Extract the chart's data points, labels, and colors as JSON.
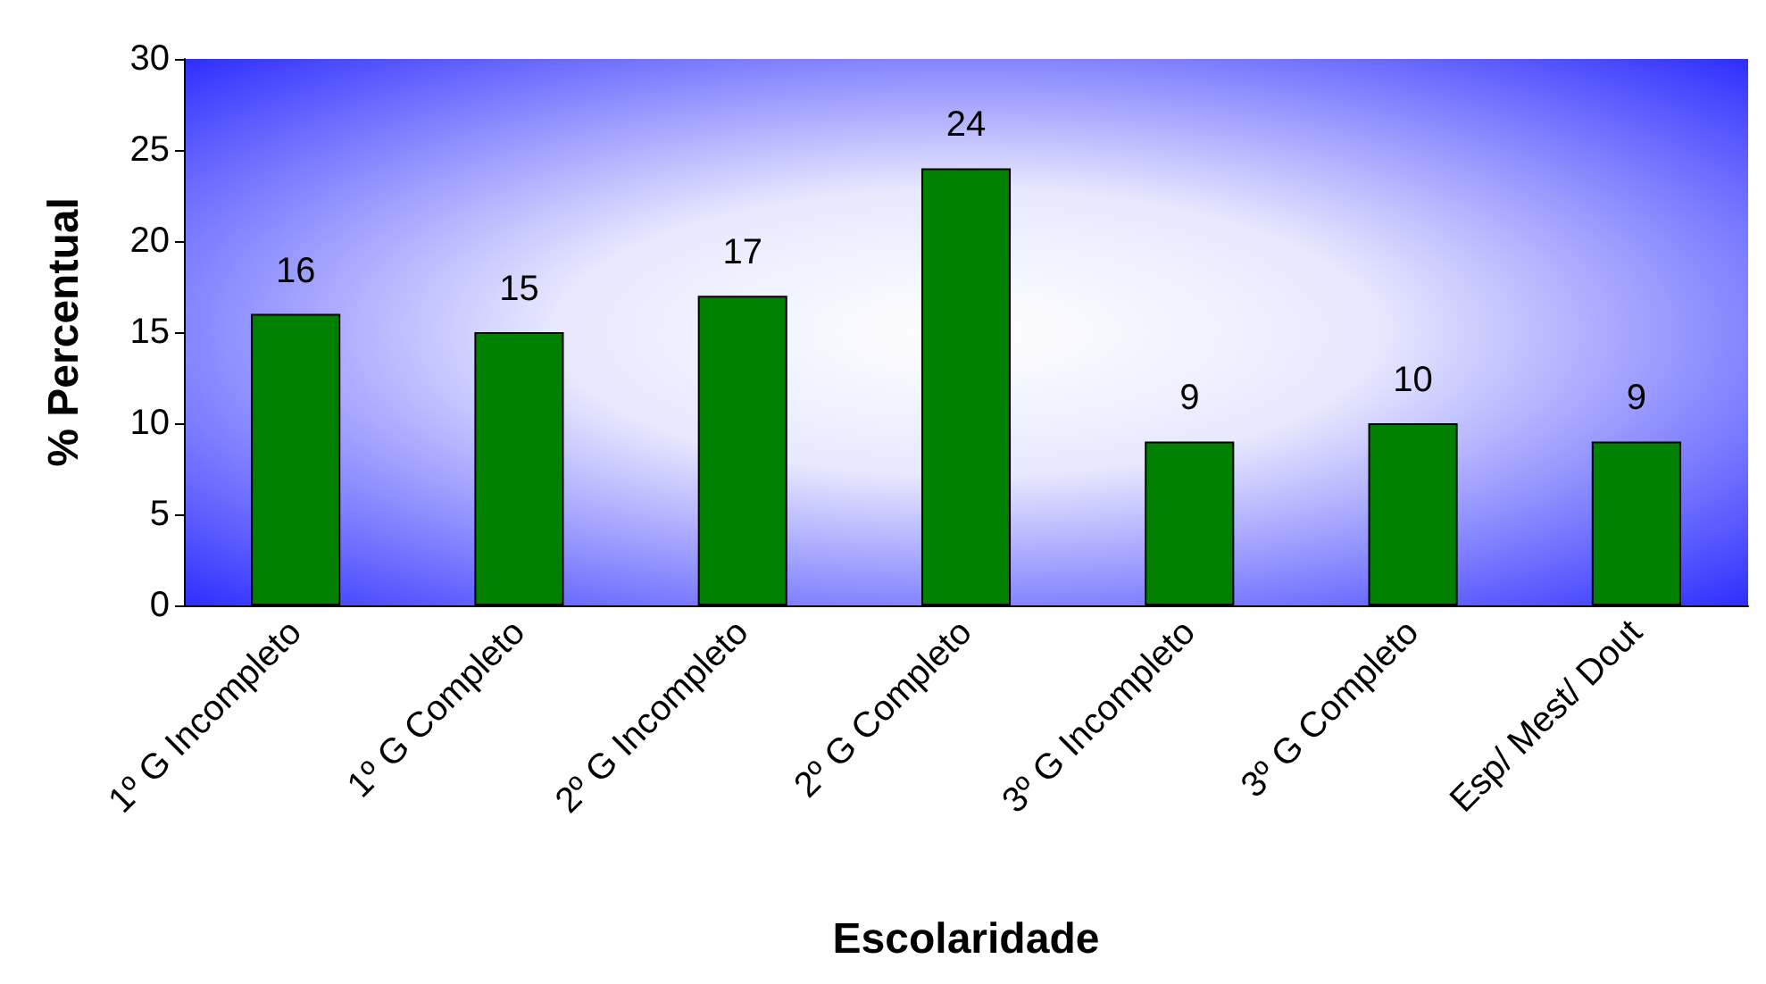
{
  "chart_data": {
    "type": "bar",
    "xlabel": "Escolaridade",
    "ylabel": "% Percentual",
    "categories": [
      "1º G Incompleto",
      "1º G Completo",
      "2º G Incompleto",
      "2º G Completo",
      "3º G Incompleto",
      "3º G Completo",
      "Esp/ Mest/ Dout"
    ],
    "values": [
      16,
      15,
      17,
      24,
      9,
      10,
      9
    ],
    "color": "#007f00",
    "ylim": [
      0,
      30
    ],
    "yticks": [
      0,
      5,
      10,
      15,
      20,
      25,
      30
    ],
    "grid": false,
    "data_labels": true
  }
}
